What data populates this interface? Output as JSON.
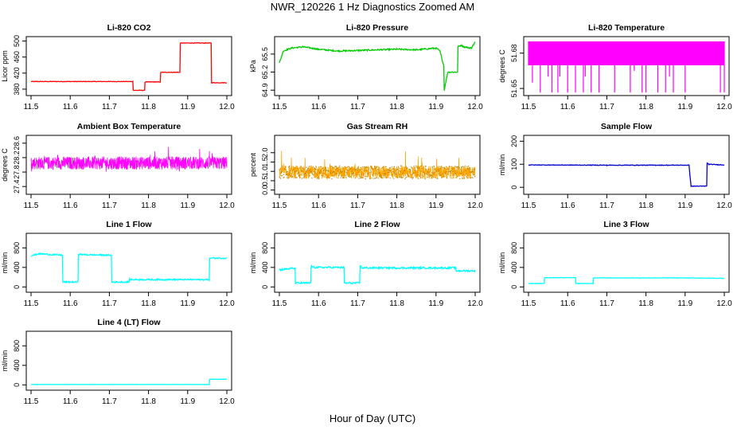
{
  "page": {
    "title": "NWR_120226  1 Hz Diagnostics Zoomed AM",
    "xlabel": "Hour of Day (UTC)"
  },
  "chart_data": [
    {
      "type": "line",
      "title": "Li-820 CO2",
      "xlabel": "",
      "ylabel": "Licor ppm",
      "color": "#ff0000",
      "xlim": [
        11.5,
        12.0
      ],
      "ylim": [
        370,
        505
      ],
      "xticks": [
        "11.5",
        "11.6",
        "11.7",
        "11.8",
        "11.9",
        "12.0"
      ],
      "yticks": [
        "380",
        "420",
        "460",
        "500"
      ],
      "series": [
        {
          "x": [
            11.5,
            11.76,
            11.761,
            11.79,
            11.791,
            11.83,
            11.831,
            11.88,
            11.881,
            11.96,
            11.961,
            12.0
          ],
          "y": [
            399,
            399,
            377,
            377,
            398,
            398,
            422,
            422,
            495,
            495,
            396,
            396
          ]
        }
      ],
      "noise": 0.6
    },
    {
      "type": "line",
      "title": "Li-820 Pressure",
      "xlabel": "",
      "ylabel": "kPa",
      "color": "#00cc00",
      "xlim": [
        11.5,
        12.0
      ],
      "ylim": [
        64.85,
        65.75
      ],
      "xticks": [
        "11.5",
        "11.6",
        "11.7",
        "11.8",
        "11.9",
        "12.0"
      ],
      "yticks": [
        "64.9",
        "65.2",
        "65.5"
      ],
      "series": [
        {
          "x": [
            11.5,
            11.51,
            11.53,
            11.56,
            11.6,
            11.65,
            11.7,
            11.75,
            11.8,
            11.85,
            11.9,
            11.91,
            11.92,
            11.921,
            11.93,
            11.955,
            11.956,
            11.965,
            11.97,
            11.99,
            12.0
          ],
          "y": [
            65.35,
            65.55,
            65.6,
            65.62,
            65.58,
            65.55,
            65.56,
            65.57,
            65.58,
            65.57,
            65.6,
            65.55,
            65.3,
            64.9,
            65.2,
            65.2,
            65.62,
            65.65,
            65.62,
            65.6,
            65.7
          ]
        }
      ],
      "noise": 0.012
    },
    {
      "type": "spike",
      "title": "Li-820 Temperature",
      "xlabel": "",
      "ylabel": "degrees C",
      "color": "#ff00ff",
      "xlim": [
        11.5,
        12.0
      ],
      "ylim": [
        51.646,
        51.692
      ],
      "xticks": [
        "11.5",
        "11.6",
        "11.7",
        "11.8",
        "11.9",
        "12.0"
      ],
      "yticks": [
        "51.65",
        "51.68"
      ],
      "baseline": 51.69,
      "high": 51.69,
      "low": 51.6465,
      "series": [
        {
          "x": [
            11.51,
            11.53,
            11.55,
            11.56,
            11.575,
            11.58,
            11.6,
            11.605,
            11.62,
            11.64,
            11.645,
            11.66,
            11.67,
            11.68,
            11.72,
            11.75,
            11.76,
            11.77,
            11.79,
            11.8,
            11.81,
            11.83,
            11.85,
            11.86,
            11.87,
            11.9,
            11.91,
            11.99,
            12.0
          ],
          "y": [
            51.655,
            51.6465,
            51.66,
            51.6465,
            51.6465,
            51.66,
            51.6465,
            51.67,
            51.6465,
            51.6465,
            51.66,
            51.6465,
            51.67,
            51.6465,
            51.6465,
            51.67,
            51.6465,
            51.665,
            51.6465,
            51.6465,
            51.67,
            51.6465,
            51.6465,
            51.66,
            51.6465,
            51.6465,
            51.67,
            51.6465,
            51.6465
          ]
        }
      ]
    },
    {
      "type": "noisy",
      "title": "Ambient Box Temperature",
      "xlabel": "",
      "ylabel": "degrees C",
      "color": "#ff00ff",
      "xlim": [
        11.5,
        12.0
      ],
      "ylim": [
        27.25,
        28.75
      ],
      "xticks": [
        "11.5",
        "11.6",
        "11.7",
        "11.8",
        "11.9",
        "12.0"
      ],
      "yticks": [
        "27.4",
        "27.8",
        "28.2",
        "28.6"
      ],
      "series": [
        {
          "x": [
            11.5,
            12.0
          ],
          "y": [
            28.05,
            28.05
          ]
        }
      ],
      "noise": 0.18,
      "spike": 0.5
    },
    {
      "type": "noisy",
      "title": "Gas Stream RH",
      "xlabel": "",
      "ylabel": "percent",
      "color": "#ffa500",
      "point_color": "#b8860b",
      "xlim": [
        11.5,
        12.0
      ],
      "ylim": [
        -0.1,
        2.8
      ],
      "xticks": [
        "11.5",
        "11.6",
        "11.7",
        "11.8",
        "11.9",
        "12.0"
      ],
      "yticks": [
        "0.0",
        "0.5",
        "1.0",
        "1.5",
        "2.0"
      ],
      "series": [
        {
          "x": [
            11.5,
            12.0
          ],
          "y": [
            0.95,
            0.95
          ]
        }
      ],
      "noise": 0.35,
      "spike": 1.6
    },
    {
      "type": "line",
      "title": "Sample Flow",
      "xlabel": "",
      "ylabel": "ml/min",
      "color": "#0000cd",
      "xlim": [
        11.5,
        12.0
      ],
      "ylim": [
        -20,
        215
      ],
      "xticks": [
        "11.5",
        "11.6",
        "11.7",
        "11.8",
        "11.9",
        "12.0"
      ],
      "yticks": [
        "0",
        "100",
        "200"
      ],
      "series": [
        {
          "x": [
            11.5,
            11.7,
            11.91,
            11.915,
            11.955,
            11.956,
            11.96,
            12.0
          ],
          "y": [
            97,
            96,
            96,
            5,
            5,
            105,
            100,
            97
          ]
        }
      ],
      "noise": 1.2
    },
    {
      "type": "line",
      "title": "Line 1 Flow",
      "xlabel": "",
      "ylabel": "ml/min",
      "color": "#00ffff",
      "xlim": [
        11.5,
        12.0
      ],
      "ylim": [
        -60,
        1050
      ],
      "xticks": [
        "11.5",
        "11.6",
        "11.7",
        "11.8",
        "11.9",
        "12.0"
      ],
      "yticks": [
        "0",
        "400",
        "800"
      ],
      "series": [
        {
          "x": [
            11.5,
            11.52,
            11.58,
            11.581,
            11.62,
            11.621,
            11.64,
            11.705,
            11.706,
            11.75,
            11.751,
            11.955,
            11.956,
            12.0
          ],
          "y": [
            640,
            680,
            650,
            100,
            100,
            670,
            660,
            650,
            100,
            100,
            150,
            150,
            590,
            590
          ]
        }
      ],
      "noise": 14
    },
    {
      "type": "line",
      "title": "Line 2 Flow",
      "xlabel": "",
      "ylabel": "ml/min",
      "color": "#00ffff",
      "xlim": [
        11.5,
        12.0
      ],
      "ylim": [
        -60,
        1050
      ],
      "xticks": [
        "11.5",
        "11.6",
        "11.7",
        "11.8",
        "11.9",
        "12.0"
      ],
      "yticks": [
        "0",
        "400",
        "800"
      ],
      "series": [
        {
          "x": [
            11.5,
            11.53,
            11.54,
            11.541,
            11.58,
            11.581,
            11.59,
            11.665,
            11.666,
            11.705,
            11.706,
            11.71,
            11.95,
            11.951,
            12.0
          ],
          "y": [
            350,
            380,
            380,
            80,
            80,
            420,
            400,
            400,
            80,
            80,
            450,
            390,
            390,
            330,
            330
          ]
        }
      ],
      "noise": 18
    },
    {
      "type": "line",
      "title": "Line 3 Flow",
      "xlabel": "",
      "ylabel": "ml/min",
      "color": "#00ffff",
      "xlim": [
        11.5,
        12.0
      ],
      "ylim": [
        -60,
        1050
      ],
      "xticks": [
        "11.5",
        "11.6",
        "11.7",
        "11.8",
        "11.9",
        "12.0"
      ],
      "yticks": [
        "0",
        "400",
        "800"
      ],
      "series": [
        {
          "x": [
            11.5,
            11.54,
            11.541,
            11.62,
            11.621,
            11.665,
            11.666,
            11.9,
            12.0
          ],
          "y": [
            70,
            70,
            190,
            190,
            70,
            70,
            185,
            185,
            175
          ]
        }
      ],
      "noise": 4
    },
    {
      "type": "line",
      "title": "Line 4 (LT) Flow",
      "xlabel": "",
      "ylabel": "ml/min",
      "color": "#00ffff",
      "xlim": [
        11.5,
        12.0
      ],
      "ylim": [
        -60,
        1050
      ],
      "xticks": [
        "11.5",
        "11.6",
        "11.7",
        "11.8",
        "11.9",
        "12.0"
      ],
      "yticks": [
        "0",
        "400",
        "800"
      ],
      "series": [
        {
          "x": [
            11.5,
            11.955,
            11.956,
            12.0
          ],
          "y": [
            8,
            8,
            115,
            115
          ]
        }
      ],
      "noise": 1
    }
  ]
}
